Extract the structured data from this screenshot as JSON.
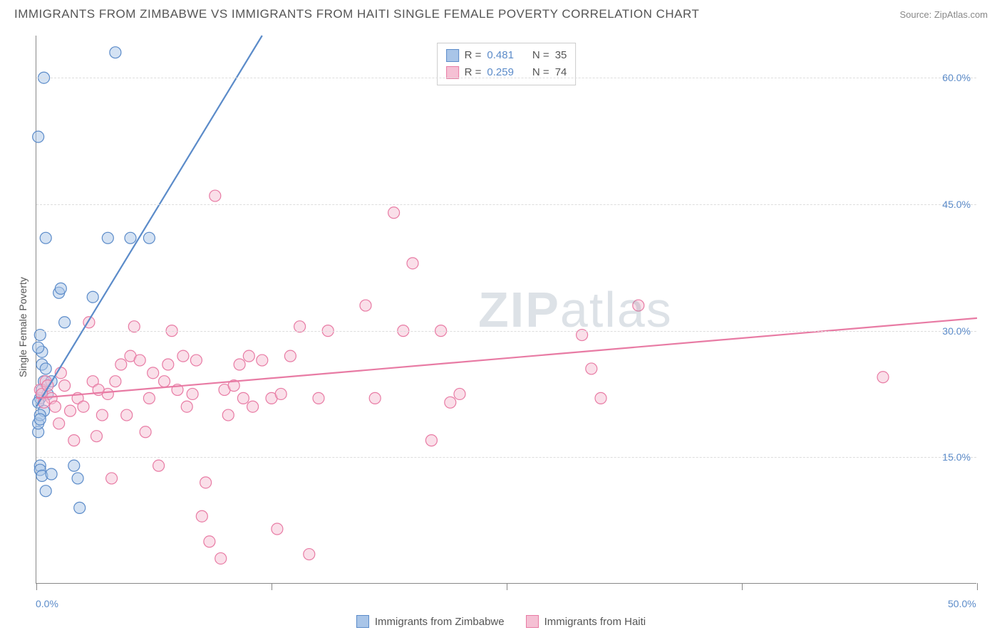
{
  "title": "IMMIGRANTS FROM ZIMBABWE VS IMMIGRANTS FROM HAITI SINGLE FEMALE POVERTY CORRELATION CHART",
  "source": "Source: ZipAtlas.com",
  "y_axis_label": "Single Female Poverty",
  "watermark": {
    "bold": "ZIP",
    "rest": "atlas"
  },
  "chart": {
    "type": "scatter",
    "background_color": "#ffffff",
    "grid_color": "#dddddd",
    "axis_color": "#888888",
    "xlim": [
      0,
      50
    ],
    "ylim": [
      0,
      65
    ],
    "x_ticks": [
      0,
      12.5,
      25,
      37.5,
      50
    ],
    "x_tick_labels": [
      "0.0%",
      "",
      "",
      "",
      "50.0%"
    ],
    "y_ticks": [
      15,
      30,
      45,
      60
    ],
    "y_tick_labels": [
      "15.0%",
      "30.0%",
      "45.0%",
      "60.0%"
    ],
    "tick_label_color": "#5b8bc9",
    "tick_fontsize": 14,
    "label_fontsize": 14,
    "title_fontsize": 17,
    "marker_radius": 8,
    "marker_stroke_width": 1.2,
    "marker_fill_opacity": 0.25,
    "series": [
      {
        "name": "Immigrants from Zimbabwe",
        "color_stroke": "#5b8bc9",
        "color_fill": "#a9c5e8",
        "R": "0.481",
        "N": "35",
        "trend": {
          "x1": 0,
          "y1": 21,
          "x2": 12,
          "y2": 65,
          "stroke_width": 2.2
        },
        "points": [
          [
            0.1,
            18
          ],
          [
            0.1,
            19
          ],
          [
            0.2,
            14
          ],
          [
            0.2,
            13.5
          ],
          [
            0.3,
            12.8
          ],
          [
            0.5,
            11
          ],
          [
            0.8,
            13
          ],
          [
            0.5,
            41
          ],
          [
            0.4,
            60
          ],
          [
            0.1,
            53
          ],
          [
            0.3,
            26
          ],
          [
            0.3,
            27.5
          ],
          [
            0.1,
            28
          ],
          [
            0.2,
            29.5
          ],
          [
            0.4,
            24
          ],
          [
            0.2,
            22
          ],
          [
            0.1,
            21.5
          ],
          [
            0.4,
            20.5
          ],
          [
            0.2,
            20
          ],
          [
            0.2,
            19.5
          ],
          [
            1.2,
            34.5
          ],
          [
            1.3,
            35
          ],
          [
            1.5,
            31
          ],
          [
            2.0,
            14
          ],
          [
            2.2,
            12.5
          ],
          [
            2.3,
            9
          ],
          [
            3.0,
            34
          ],
          [
            3.8,
            41
          ],
          [
            4.2,
            63
          ],
          [
            5.0,
            41
          ],
          [
            6.0,
            41
          ],
          [
            0.3,
            23
          ],
          [
            0.6,
            22.5
          ],
          [
            0.8,
            24
          ],
          [
            0.5,
            25.5
          ]
        ]
      },
      {
        "name": "Immigrants from Haiti",
        "color_stroke": "#e87ba4",
        "color_fill": "#f5c0d4",
        "R": "0.259",
        "N": "74",
        "trend": {
          "x1": 0,
          "y1": 22,
          "x2": 50,
          "y2": 31.5,
          "stroke_width": 2.2
        },
        "points": [
          [
            0.2,
            23
          ],
          [
            0.3,
            22.5
          ],
          [
            0.5,
            24
          ],
          [
            0.8,
            22
          ],
          [
            1.0,
            21
          ],
          [
            1.5,
            23.5
          ],
          [
            1.3,
            25
          ],
          [
            2.0,
            17
          ],
          [
            2.2,
            22
          ],
          [
            2.5,
            21
          ],
          [
            3.0,
            24
          ],
          [
            3.2,
            17.5
          ],
          [
            3.5,
            20
          ],
          [
            3.8,
            22.5
          ],
          [
            4.0,
            12.5
          ],
          [
            4.5,
            26
          ],
          [
            4.8,
            20
          ],
          [
            5.0,
            27
          ],
          [
            5.2,
            30.5
          ],
          [
            5.5,
            26.5
          ],
          [
            5.8,
            18
          ],
          [
            6.0,
            22
          ],
          [
            6.2,
            25
          ],
          [
            6.5,
            14
          ],
          [
            7.0,
            26
          ],
          [
            7.2,
            30
          ],
          [
            7.5,
            23
          ],
          [
            7.8,
            27
          ],
          [
            8.0,
            21
          ],
          [
            8.3,
            22.5
          ],
          [
            8.5,
            26.5
          ],
          [
            8.8,
            8
          ],
          [
            9.0,
            12
          ],
          [
            9.2,
            5
          ],
          [
            9.5,
            46
          ],
          [
            10.0,
            23
          ],
          [
            10.2,
            20
          ],
          [
            10.5,
            23.5
          ],
          [
            10.8,
            26
          ],
          [
            11.0,
            22
          ],
          [
            11.3,
            27
          ],
          [
            11.5,
            21
          ],
          [
            12.0,
            26.5
          ],
          [
            12.5,
            22
          ],
          [
            13.0,
            22.5
          ],
          [
            13.5,
            27
          ],
          [
            14.0,
            30.5
          ],
          [
            14.5,
            3.5
          ],
          [
            15.0,
            22
          ],
          [
            15.5,
            30
          ],
          [
            17.5,
            33
          ],
          [
            18.0,
            22
          ],
          [
            19.0,
            44
          ],
          [
            19.5,
            30
          ],
          [
            20.0,
            38
          ],
          [
            21.0,
            17
          ],
          [
            21.5,
            30
          ],
          [
            22.0,
            21.5
          ],
          [
            22.5,
            22.5
          ],
          [
            29.0,
            29.5
          ],
          [
            29.5,
            25.5
          ],
          [
            30.0,
            22
          ],
          [
            32.0,
            33
          ],
          [
            45.0,
            24.5
          ],
          [
            2.8,
            31
          ],
          [
            0.4,
            21.5
          ],
          [
            0.6,
            23.5
          ],
          [
            1.2,
            19
          ],
          [
            1.8,
            20.5
          ],
          [
            3.3,
            23
          ],
          [
            4.2,
            24
          ],
          [
            6.8,
            24
          ],
          [
            12.8,
            6.5
          ],
          [
            9.8,
            3
          ]
        ]
      }
    ]
  },
  "legend_top": {
    "r_label": "R =",
    "n_label": "N ="
  },
  "legend_bottom": {}
}
